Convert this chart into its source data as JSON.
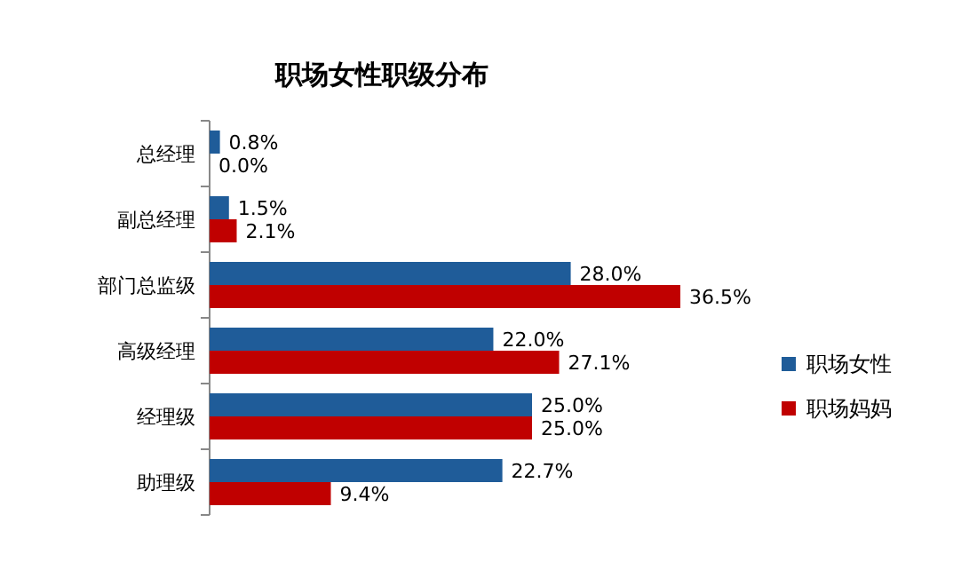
{
  "chart_data": {
    "type": "bar",
    "orientation": "horizontal",
    "title": "职场女性职级分布",
    "categories": [
      "总经理",
      "副总经理",
      "部门总监级",
      "高级经理",
      "经理级",
      "助理级"
    ],
    "series": [
      {
        "name": "职场女性",
        "color": "#1f5c99",
        "values": [
          0.8,
          1.5,
          28.0,
          22.0,
          25.0,
          22.7
        ],
        "value_labels": [
          "0.8%",
          "1.5%",
          "28.0%",
          "22.0%",
          "25.0%",
          "22.7%"
        ]
      },
      {
        "name": "职场妈妈",
        "color": "#c00000",
        "values": [
          0.0,
          2.1,
          36.5,
          27.1,
          25.0,
          9.4
        ],
        "value_labels": [
          "0.0%",
          "2.1%",
          "36.5%",
          "27.1%",
          "25.0%",
          "9.4%"
        ]
      }
    ],
    "legend": "right",
    "grid": false
  }
}
